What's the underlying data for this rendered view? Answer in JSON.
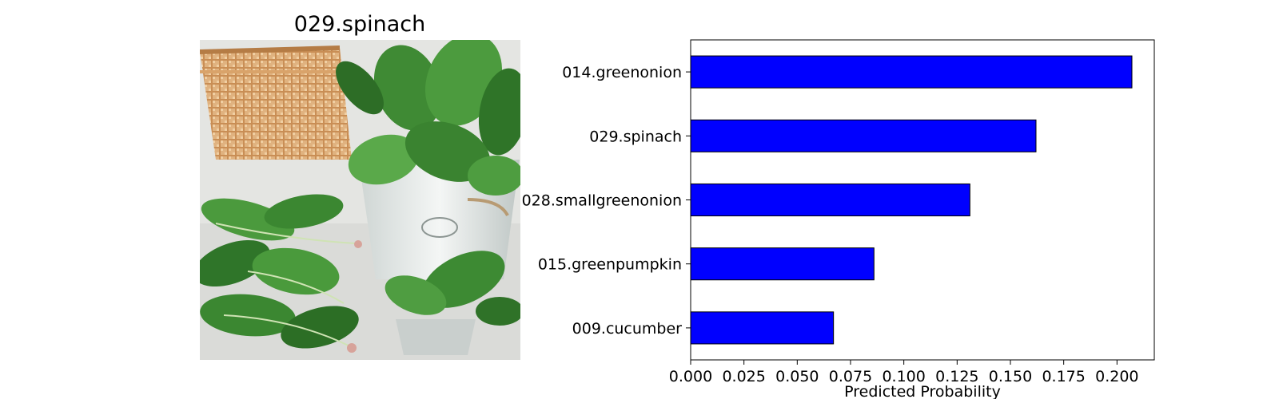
{
  "image_panel": {
    "title": "029.spinach",
    "photo": "spinach-photo"
  },
  "chart_data": {
    "type": "bar",
    "orientation": "horizontal",
    "categories": [
      "014.greenonion",
      "029.spinach",
      "028.smallgreenonion",
      "015.greenpumpkin",
      "009.cucumber"
    ],
    "values": [
      0.207,
      0.162,
      0.131,
      0.086,
      0.067
    ],
    "xlabel": "Predicted Probability",
    "ylabel": "",
    "xlim": [
      0,
      0.2175
    ],
    "xticks": [
      "0.000",
      "0.025",
      "0.050",
      "0.075",
      "0.100",
      "0.125",
      "0.150",
      "0.175",
      "0.200"
    ],
    "bar_color": "#0000ff",
    "edge_color": "#000000",
    "grid": false,
    "legend": "none"
  }
}
